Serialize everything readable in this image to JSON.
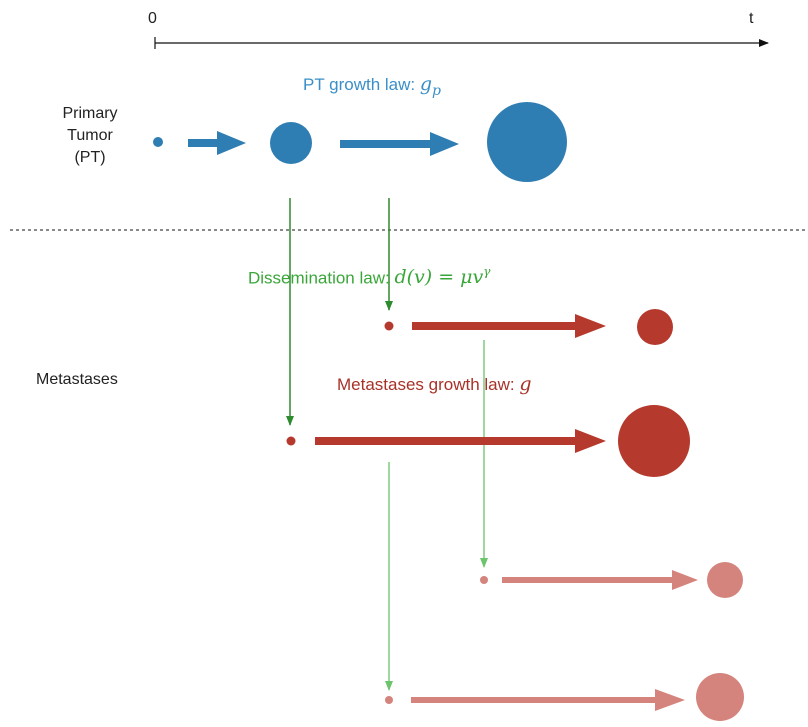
{
  "axis": {
    "start_label": "0",
    "end_label": "t"
  },
  "labels": {
    "primary_tumor": [
      "Primary",
      "Tumor",
      "(PT)"
    ],
    "metastases": "Metastases"
  },
  "laws": {
    "pt_growth": {
      "text": "PT growth law: ",
      "formula": "g_p",
      "formula_base": "g",
      "formula_sub": "p"
    },
    "dissemination": {
      "text": "Dissemination law: ",
      "formula": "d(v) = μv^γ",
      "formula_main": "d(v) = μv",
      "formula_sup": "γ"
    },
    "met_growth": {
      "text": "Metastases growth law: ",
      "formula": "g"
    }
  },
  "colors": {
    "pt_blue": "#2f7eb3",
    "met_red": "#b5392d",
    "met_light": "#d4847c",
    "dissemination_green": "#2e8b2e",
    "dissemination_light_green": "#6cc46c",
    "law_blue": "#3a8fc8",
    "law_green": "#3aa63a",
    "law_red": "#a83228"
  }
}
